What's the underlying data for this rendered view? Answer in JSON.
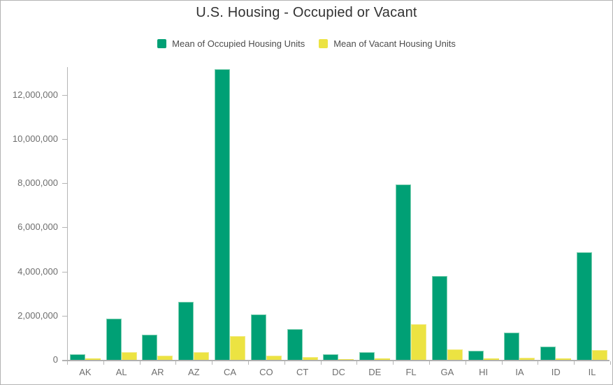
{
  "window": {
    "background": "#ffffff",
    "border_color": "#b3b3b3",
    "axis_color": "#b5b5b5",
    "baseline_color": "#b0b0b0",
    "tick_label_color": "#6e6e6e",
    "title_color": "#323232",
    "legend_text_color": "#4c4c4c"
  },
  "chart_data": {
    "type": "bar",
    "title": "U.S. Housing - Occupied or Vacant",
    "xlabel": "",
    "ylabel": "",
    "grid": false,
    "legend_position": "top",
    "ylim": [
      0,
      13250000
    ],
    "y_ticks": [
      0,
      2000000,
      4000000,
      6000000,
      8000000,
      10000000,
      12000000
    ],
    "y_tick_labels": [
      "0",
      "2,000,000",
      "4,000,000",
      "6,000,000",
      "8,000,000",
      "10,000,000",
      "12,000,000"
    ],
    "categories": [
      "AK",
      "AL",
      "AR",
      "AZ",
      "CA",
      "CO",
      "CT",
      "DC",
      "DE",
      "FL",
      "GA",
      "HI",
      "IA",
      "ID",
      "IL"
    ],
    "series": [
      {
        "name": "Mean of Occupied Housing Units",
        "color": "#00a075",
        "edge_color": "#7fd0b2",
        "values": [
          240000,
          1850000,
          1130000,
          2620000,
          13150000,
          2070000,
          1380000,
          250000,
          340000,
          7950000,
          3800000,
          400000,
          1230000,
          590000,
          4870000
        ]
      },
      {
        "name": "Mean of Vacant Housing Units",
        "color": "#ece342",
        "edge_color": "#f2ea85",
        "values": [
          60000,
          350000,
          180000,
          360000,
          1080000,
          190000,
          120000,
          30000,
          60000,
          1600000,
          460000,
          50000,
          100000,
          60000,
          450000
        ]
      }
    ]
  }
}
